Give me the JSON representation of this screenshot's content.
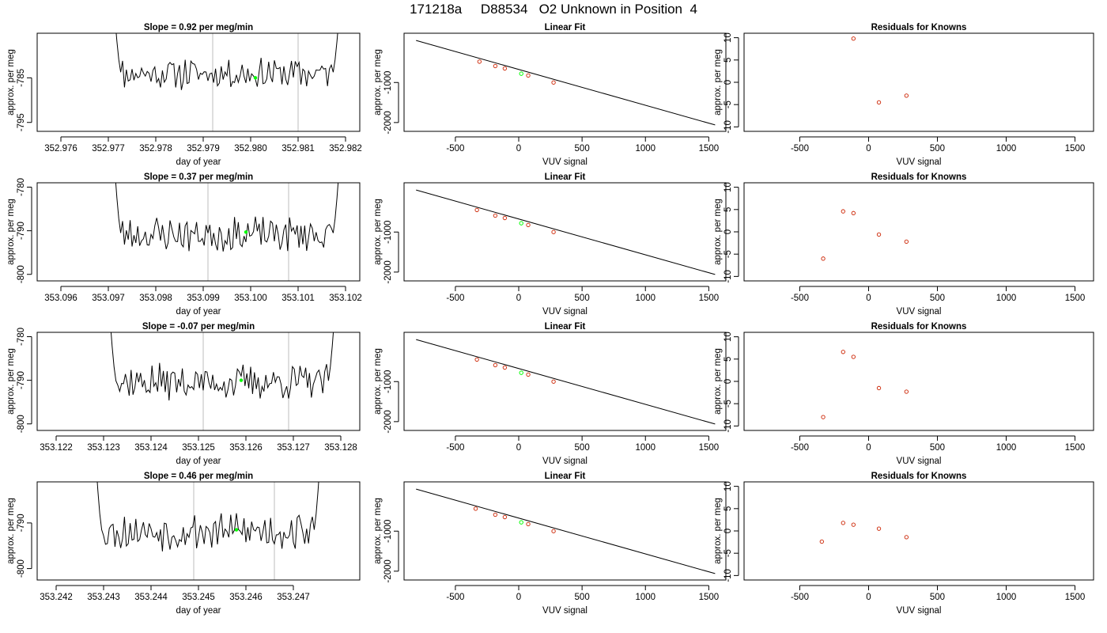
{
  "page": {
    "title": "171218a     D88534   O2 Unknown in Position  4"
  },
  "style": {
    "trace_color": "#000000",
    "marker_green": "#00ff00",
    "known_point_color": "#cc2200",
    "window_line_color": "#c8c8c8",
    "axis_color": "#000000"
  },
  "chart_data": [
    {
      "type": "line",
      "title": "Slope =  0.92  per meg/min",
      "xlabel": "day of year",
      "ylabel": "approx. per meg",
      "xlim": [
        352.9755,
        352.9823
      ],
      "ylim": [
        -797,
        -775
      ],
      "xticks": [
        "352.976",
        "352.977",
        "352.978",
        "352.979",
        "352.980",
        "352.981",
        "352.982"
      ],
      "xtick_values": [
        352.976,
        352.977,
        352.978,
        352.979,
        352.98,
        352.981,
        352.982
      ],
      "yticks": [
        "-795",
        "-785"
      ],
      "ytick_values": [
        -795,
        -785
      ],
      "vlines": [
        352.9792,
        352.981
      ],
      "trace_start": 352.9771,
      "trace_end": 352.9819,
      "trace_base": -784.0,
      "trace_amp": 1.4,
      "trace_seed": 11,
      "trace_edge_high": -766,
      "marker": {
        "x": 352.9801,
        "y": -785.0
      }
    },
    {
      "type": "scatter",
      "title": "Linear Fit",
      "xlabel": "VUV signal",
      "ylabel": "approx. per meg",
      "xlim": [
        -905,
        1635
      ],
      "ylim": [
        -2220,
        230
      ],
      "xticks": [
        "-500",
        "0",
        "500",
        "1000",
        "1500"
      ],
      "xtick_values": [
        -500,
        0,
        500,
        1000,
        1500
      ],
      "yticks": [
        "-1000",
        "-2000"
      ],
      "ytick_values": [
        -1000,
        -2000
      ],
      "fit_line": {
        "x": [
          -810,
          1550
        ],
        "y": [
          50,
          -2060
        ]
      },
      "known_points": {
        "x": [
          -310,
          -185,
          -110,
          75,
          275
        ],
        "y": [
          -480,
          -590,
          -650,
          -825,
          -1000
        ]
      },
      "unknown_point": {
        "x": 20,
        "y": -780
      }
    },
    {
      "type": "scatter",
      "title": "Residuals for Knowns",
      "xlabel": "VUV signal",
      "ylabel": "approx. per meg",
      "xlim": [
        -905,
        1635
      ],
      "ylim": [
        -11,
        11
      ],
      "xticks": [
        "-500",
        "0",
        "500",
        "1000",
        "1500"
      ],
      "xtick_values": [
        -500,
        0,
        500,
        1000,
        1500
      ],
      "yticks": [
        "-10",
        "-5",
        "0",
        "5",
        "10"
      ],
      "ytick_values": [
        -10,
        -5,
        0,
        5,
        10
      ],
      "points": {
        "x": [
          -110,
          75,
          275
        ],
        "y": [
          9.8,
          -4.5,
          -3.0
        ]
      }
    },
    {
      "type": "line",
      "title": "Slope =  0.37  per meg/min",
      "xlabel": "day of year",
      "ylabel": "approx. per meg",
      "xlim": [
        353.0955,
        353.1023
      ],
      "ylim": [
        -801.5,
        -779
      ],
      "xticks": [
        "353.096",
        "353.097",
        "353.098",
        "353.099",
        "353.100",
        "353.101",
        "353.102"
      ],
      "xtick_values": [
        353.096,
        353.097,
        353.098,
        353.099,
        353.1,
        353.101,
        353.102
      ],
      "yticks": [
        "-800",
        "-790",
        "-780"
      ],
      "ytick_values": [
        -800,
        -790,
        -780
      ],
      "vlines": [
        353.0991,
        353.1008
      ],
      "trace_start": 353.0971,
      "trace_end": 353.1019,
      "trace_base": -790.8,
      "trace_amp": 1.6,
      "trace_seed": 23,
      "trace_edge_high": -770,
      "marker": {
        "x": 353.0999,
        "y": -790.3
      }
    },
    {
      "type": "scatter",
      "title": "Linear Fit",
      "xlabel": "VUV signal",
      "ylabel": "approx. per meg",
      "xlim": [
        -905,
        1635
      ],
      "ylim": [
        -2220,
        230
      ],
      "xticks": [
        "-500",
        "0",
        "500",
        "1000",
        "1500"
      ],
      "xtick_values": [
        -500,
        0,
        500,
        1000,
        1500
      ],
      "yticks": [
        "-1000",
        "-2000"
      ],
      "ytick_values": [
        -1000,
        -2000
      ],
      "fit_line": {
        "x": [
          -810,
          1550
        ],
        "y": [
          50,
          -2060
        ]
      },
      "known_points": {
        "x": [
          -330,
          -185,
          -110,
          75,
          275
        ],
        "y": [
          -450,
          -590,
          -650,
          -825,
          -1000
        ]
      },
      "unknown_point": {
        "x": 20,
        "y": -780
      }
    },
    {
      "type": "scatter",
      "title": "Residuals for Knowns",
      "xlabel": "VUV signal",
      "ylabel": "approx. per meg",
      "xlim": [
        -905,
        1635
      ],
      "ylim": [
        -11,
        11
      ],
      "xticks": [
        "-500",
        "0",
        "500",
        "1000",
        "1500"
      ],
      "xtick_values": [
        -500,
        0,
        500,
        1000,
        1500
      ],
      "yticks": [
        "-10",
        "-5",
        "0",
        "5",
        "10"
      ],
      "ytick_values": [
        -10,
        -5,
        0,
        5,
        10
      ],
      "points": {
        "x": [
          -330,
          -185,
          -110,
          75,
          275
        ],
        "y": [
          -6.0,
          4.6,
          4.2,
          -0.6,
          -2.2
        ]
      }
    },
    {
      "type": "line",
      "title": "Slope =  -0.07  per meg/min",
      "xlabel": "day of year",
      "ylabel": "approx. per meg",
      "xlim": [
        353.1216,
        353.1284
      ],
      "ylim": [
        -801.5,
        -779
      ],
      "xticks": [
        "353.122",
        "353.123",
        "353.124",
        "353.125",
        "353.126",
        "353.127",
        "353.128"
      ],
      "xtick_values": [
        353.122,
        353.123,
        353.124,
        353.125,
        353.126,
        353.127,
        353.128
      ],
      "yticks": [
        "-800",
        "-790",
        "-780"
      ],
      "ytick_values": [
        -800,
        -790,
        -780
      ],
      "vlines": [
        353.1251,
        353.1269
      ],
      "trace_start": 353.1231,
      "trace_end": 353.1279,
      "trace_base": -790.4,
      "trace_amp": 1.6,
      "trace_seed": 37,
      "trace_edge_high": -770,
      "marker": {
        "x": 353.1259,
        "y": -790.0
      }
    },
    {
      "type": "scatter",
      "title": "Linear Fit",
      "xlabel": "VUV signal",
      "ylabel": "approx. per meg",
      "xlim": [
        -905,
        1635
      ],
      "ylim": [
        -2220,
        230
      ],
      "xticks": [
        "-500",
        "0",
        "500",
        "1000",
        "1500"
      ],
      "xtick_values": [
        -500,
        0,
        500,
        1000,
        1500
      ],
      "yticks": [
        "-1000",
        "-2000"
      ],
      "ytick_values": [
        -1000,
        -2000
      ],
      "fit_line": {
        "x": [
          -810,
          1550
        ],
        "y": [
          50,
          -2060
        ]
      },
      "known_points": {
        "x": [
          -330,
          -185,
          -110,
          75,
          275
        ],
        "y": [
          -450,
          -590,
          -650,
          -825,
          -1000
        ]
      },
      "unknown_point": {
        "x": 20,
        "y": -780
      }
    },
    {
      "type": "scatter",
      "title": "Residuals for Knowns",
      "xlabel": "VUV signal",
      "ylabel": "approx. per meg",
      "xlim": [
        -905,
        1635
      ],
      "ylim": [
        -11,
        11
      ],
      "xticks": [
        "-500",
        "0",
        "500",
        "1000",
        "1500"
      ],
      "xtick_values": [
        -500,
        0,
        500,
        1000,
        1500
      ],
      "yticks": [
        "-10",
        "-5",
        "0",
        "5",
        "10"
      ],
      "ytick_values": [
        -10,
        -5,
        0,
        5,
        10
      ],
      "points": {
        "x": [
          -330,
          -185,
          -110,
          75,
          275
        ],
        "y": [
          -8.0,
          6.6,
          5.5,
          -1.5,
          -2.3
        ]
      }
    },
    {
      "type": "line",
      "title": "Slope =  0.46  per meg/min",
      "xlabel": "day of year",
      "ylabel": "approx. per meg",
      "xlim": [
        353.2416,
        353.2484
      ],
      "ylim": [
        -802.5,
        -781
      ],
      "xticks": [
        "353.242",
        "353.243",
        "353.244",
        "353.245",
        "353.246",
        "353.247"
      ],
      "xtick_values": [
        353.242,
        353.243,
        353.244,
        353.245,
        353.246,
        353.247
      ],
      "yticks": [
        "-800",
        "-790"
      ],
      "ytick_values": [
        -800,
        -790
      ],
      "vlines": [
        353.2449,
        353.2466
      ],
      "trace_start": 353.2428,
      "trace_end": 353.2476,
      "trace_base": -791.8,
      "trace_amp": 1.6,
      "trace_seed": 53,
      "trace_edge_high": -770,
      "marker": {
        "x": 353.2458,
        "y": -791.5
      }
    },
    {
      "type": "scatter",
      "title": "Linear Fit",
      "xlabel": "VUV signal",
      "ylabel": "approx. per meg",
      "xlim": [
        -905,
        1635
      ],
      "ylim": [
        -2220,
        230
      ],
      "xticks": [
        "-500",
        "0",
        "500",
        "1000",
        "1500"
      ],
      "xtick_values": [
        -500,
        0,
        500,
        1000,
        1500
      ],
      "yticks": [
        "-1000",
        "-2000"
      ],
      "ytick_values": [
        -1000,
        -2000
      ],
      "fit_line": {
        "x": [
          -810,
          1550
        ],
        "y": [
          50,
          -2060
        ]
      },
      "known_points": {
        "x": [
          -340,
          -185,
          -110,
          75,
          275
        ],
        "y": [
          -440,
          -590,
          -650,
          -825,
          -1000
        ]
      },
      "unknown_point": {
        "x": 20,
        "y": -780
      }
    },
    {
      "type": "scatter",
      "title": "Residuals for Knowns",
      "xlabel": "VUV signal",
      "ylabel": "approx. per meg",
      "xlim": [
        -905,
        1635
      ],
      "ylim": [
        -11,
        11
      ],
      "xticks": [
        "-500",
        "0",
        "500",
        "1000",
        "1500"
      ],
      "xtick_values": [
        -500,
        0,
        500,
        1000,
        1500
      ],
      "yticks": [
        "-10",
        "-5",
        "0",
        "5",
        "10"
      ],
      "ytick_values": [
        -10,
        -5,
        0,
        5,
        10
      ],
      "points": {
        "x": [
          -340,
          -185,
          -110,
          75,
          275
        ],
        "y": [
          -2.4,
          1.8,
          1.4,
          0.5,
          -1.4
        ]
      }
    }
  ]
}
